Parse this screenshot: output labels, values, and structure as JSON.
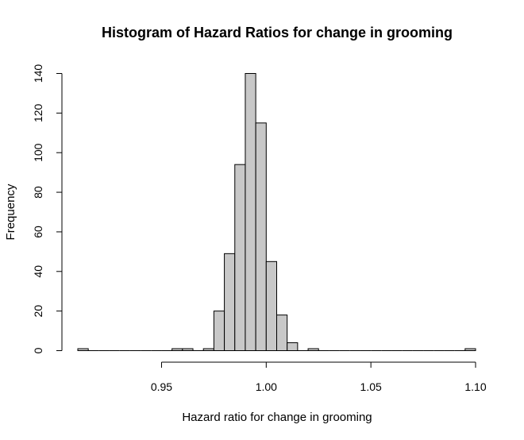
{
  "chart_data": {
    "type": "bar",
    "title": "Histogram of Hazard Ratios for change in grooming",
    "xlabel": "Hazard ratio for change in grooming",
    "ylabel": "Frequency",
    "bin_width": 0.005,
    "bins_start": [
      0.91,
      0.915,
      0.92,
      0.925,
      0.93,
      0.935,
      0.94,
      0.945,
      0.95,
      0.955,
      0.96,
      0.965,
      0.97,
      0.975,
      0.98,
      0.985,
      0.99,
      0.995,
      1.0,
      1.005,
      1.01,
      1.015,
      1.02,
      1.025,
      1.03,
      1.035,
      1.04,
      1.045,
      1.05,
      1.055,
      1.06,
      1.065,
      1.07,
      1.075,
      1.08,
      1.085,
      1.09,
      1.095
    ],
    "values": [
      1,
      0,
      0,
      0,
      0,
      0,
      0,
      0,
      0,
      1,
      1,
      0,
      1,
      20,
      49,
      94,
      140,
      115,
      45,
      18,
      4,
      0,
      1,
      0,
      0,
      0,
      0,
      0,
      0,
      0,
      0,
      0,
      0,
      0,
      0,
      0,
      0,
      1
    ],
    "xlim": [
      0.91,
      1.1
    ],
    "ylim": [
      0,
      140
    ],
    "xticks": [
      "0.95",
      "1.00",
      "1.05",
      "1.10"
    ],
    "yticks": [
      "0",
      "20",
      "40",
      "60",
      "80",
      "100",
      "120",
      "140"
    ],
    "bar_color": "#c8c8c8",
    "edge_color": "#000000",
    "grid": false
  }
}
